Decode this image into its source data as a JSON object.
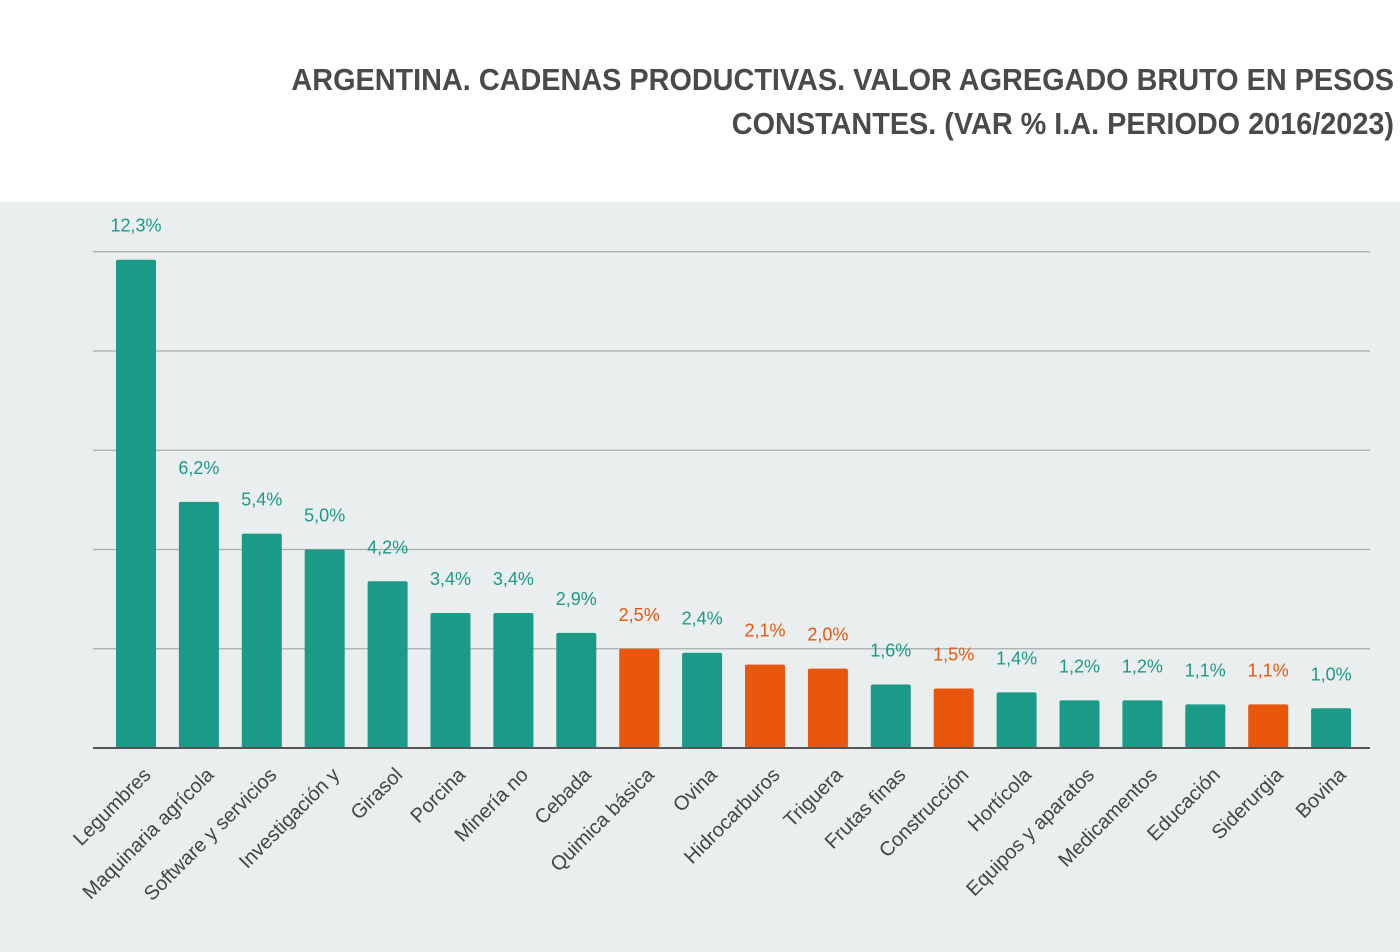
{
  "title": "ARGENTINA. CADENAS PRODUCTIVAS. VALOR AGREGADO BRUTO EN PESOS CONSTANTES. (VAR % I.A. PERIODO 2016/2023)",
  "colors": {
    "green": "#1a9a87",
    "orange": "#e8570c",
    "background": "#eaeeee",
    "grid": "#a9abad",
    "axis": "#555555",
    "title": "#4a4a4a",
    "tick_label": "#444444"
  },
  "chart_data": {
    "type": "bar",
    "title": "ARGENTINA. CADENAS PRODUCTIVAS. VALOR AGREGADO BRUTO EN PESOS CONSTANTES. (VAR % I.A. PERIODO 2016/2023)",
    "xlabel": "",
    "ylabel": "",
    "ylim": [
      0,
      12.5
    ],
    "grid": true,
    "legend": "none",
    "categories": [
      "Legumbres",
      "Maquinaria agrícola",
      "Software y servicios",
      "Investigación y",
      "Girasol",
      "Porcina",
      "Minería no",
      "Cebada",
      "Quimica básica",
      "Ovina",
      "Hidrocarburos",
      "Triguera",
      "Frutas finas",
      "Construcción",
      "Hortícola",
      "Equipos y aparatos",
      "Medicamentos",
      "Educación",
      "Siderurgia",
      "Bovina"
    ],
    "values": [
      12.3,
      6.2,
      5.4,
      5.0,
      4.2,
      3.4,
      3.4,
      2.9,
      2.5,
      2.4,
      2.1,
      2.0,
      1.6,
      1.5,
      1.4,
      1.2,
      1.2,
      1.1,
      1.1,
      1.0
    ],
    "data_labels": [
      "12,3%",
      "6,2%",
      "5,4%",
      "5,0%",
      "4,2%",
      "3,4%",
      "3,4%",
      "2,9%",
      "2,5%",
      "2,4%",
      "2,1%",
      "2,0%",
      "1,6%",
      "1,5%",
      "1,4%",
      "1,2%",
      "1,2%",
      "1,1%",
      "1,1%",
      "1,0%"
    ],
    "bar_colors": [
      "green",
      "green",
      "green",
      "green",
      "green",
      "green",
      "green",
      "green",
      "orange",
      "green",
      "orange",
      "orange",
      "green",
      "orange",
      "green",
      "green",
      "green",
      "green",
      "orange",
      "green"
    ]
  }
}
